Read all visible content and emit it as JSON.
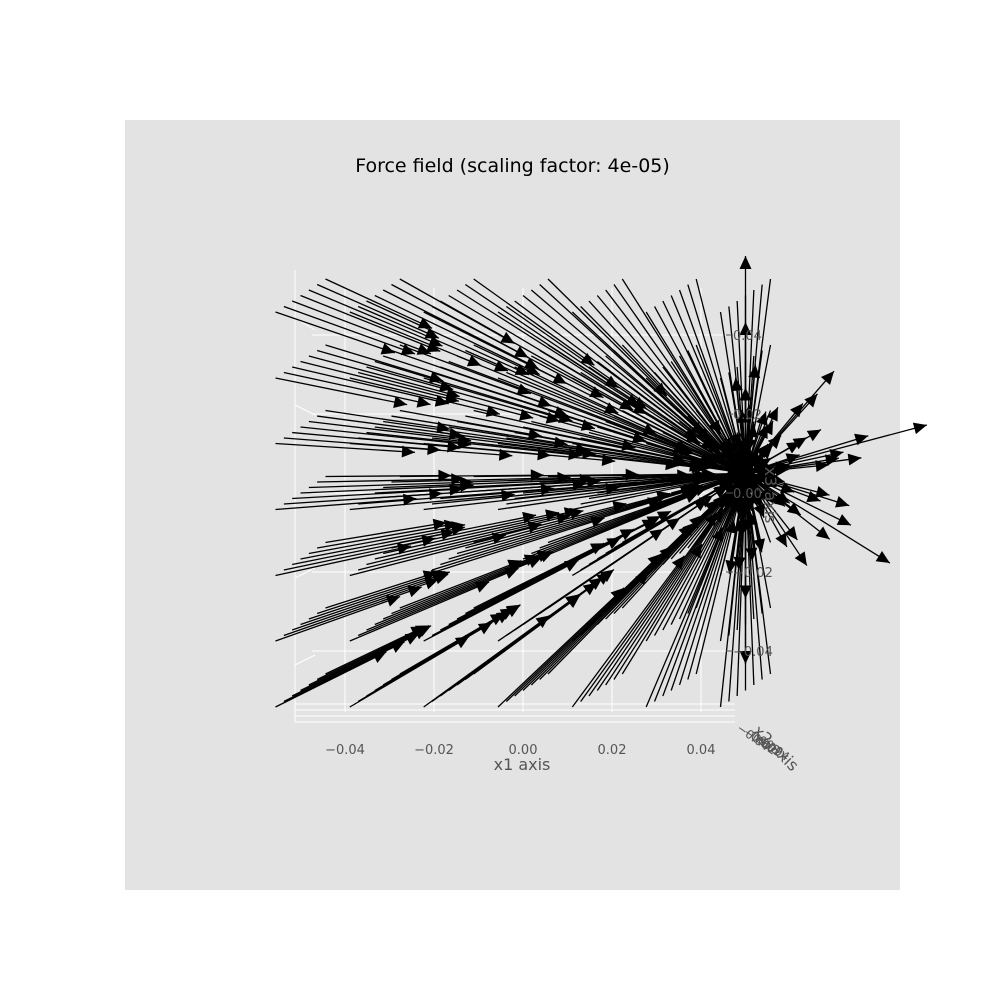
{
  "chart_data": {
    "type": "quiver3d",
    "title": "Force field (scaling factor: 4e-05)",
    "xlabel": "x1 axis",
    "ylabel": "x2 axis",
    "zlabel": "x3 axis",
    "xticks": [
      "−0.04",
      "−0.02",
      "0.00",
      "0.02",
      "0.04"
    ],
    "xtick_values": [
      -0.04,
      -0.02,
      0.0,
      0.02,
      0.04
    ],
    "yticks": [
      "−0.04",
      "−0.02",
      "0.00",
      "0.02",
      "0.04"
    ],
    "zticks": [
      "0.04",
      "0.02",
      "0.00",
      "−0.02",
      "−0.04"
    ],
    "ztick_values": [
      0.04,
      0.02,
      0.0,
      -0.02,
      -0.04
    ],
    "grid_values": [
      -0.05,
      -0.0333,
      -0.0167,
      0.0,
      0.0167,
      0.0333,
      0.05
    ],
    "scale_factor": 4e-05,
    "source_point": [
      0.05,
      0.0,
      0.005
    ],
    "grid": true,
    "view": "looking along x2 axis (x1 horizontal, x3 vertical)",
    "colors": {
      "panel": "#e3e3e3",
      "grid": "#ffffff",
      "arrow": "#000000",
      "tick_text": "#555555"
    }
  }
}
